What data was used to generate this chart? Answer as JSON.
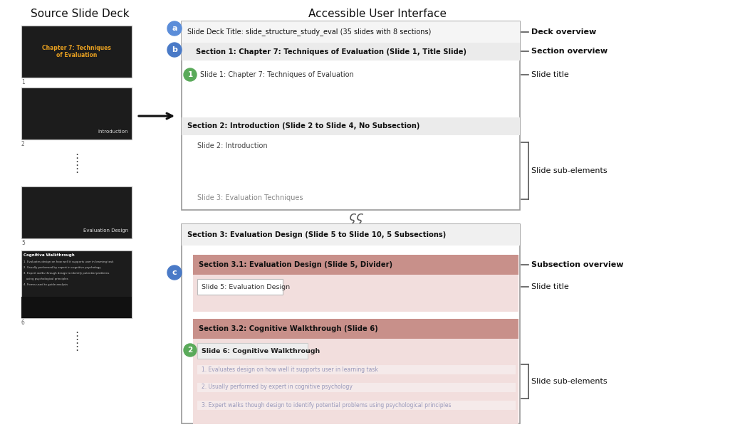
{
  "title_left": "Source Slide Deck",
  "title_right": "Accessible User Interface",
  "bg_color": "#ffffff",
  "label_a_color": "#5b8dd9",
  "label_b_color": "#4a7ac7",
  "label_c_color": "#4a7ac7",
  "label_num1_color": "#5aaa5a",
  "label_num2_color": "#5aaa5a",
  "slide1_text": "Chapter 7: Techniques\nof Evaluation",
  "slide1_text_color": "#e8a020",
  "slide2_text": "Introduction",
  "slide5_text": "Evaluation Design",
  "slide6_title": "Cognitive Walkthrough",
  "slide6_lines": [
    "1. Evaluates design on how well it supports user in learning task",
    "2. Usually performed by expert in cognitive psychology",
    "3. Expert walks through design to identify potential problems",
    "   using psychological principles",
    "4. Forms used to guide analysis"
  ],
  "deck_overview_text": "Slide Deck Title: slide_structure_study_eval (35 slides with 8 sections)",
  "section1_text": "Section 1: Chapter 7: Techniques of Evaluation (Slide 1, Title Slide)",
  "slide1_entry": "Slide 1: Chapter 7: Techniques of Evaluation",
  "section2_text": "Section 2: Introduction (Slide 2 to Slide 4, No Subsection)",
  "slide2_entry": "Slide 2: Introduction",
  "slide3_entry": "Slide 3: Evaluation Techniques",
  "section3_text": "Section 3: Evaluation Design (Slide 5 to Slide 10, 5 Subsections)",
  "subsec31_text": "Section 3.1: Evaluation Design (Slide 5, Divider)",
  "slide5_entry": "Slide 5: Evaluation Design",
  "subsec32_text": "Section 3.2: Cognitive Walkthrough (Slide 6)",
  "slide6_entry": "Slide 6: Cognitive Walkthrough",
  "sub_elements": [
    "1. Evaluates design on how well it supports user in learning task",
    "2. Usually performed by expert in cognitive psychology",
    "3. Expert walks though design to identify potential problems using psychological principles"
  ],
  "annot_deck": "Deck overview",
  "annot_section": "Section overview",
  "annot_slide_title": "Slide title",
  "annot_sub_elements": "Slide sub-elements",
  "annot_subsection": "Subsection overview",
  "annot_slide_title2": "Slide title"
}
